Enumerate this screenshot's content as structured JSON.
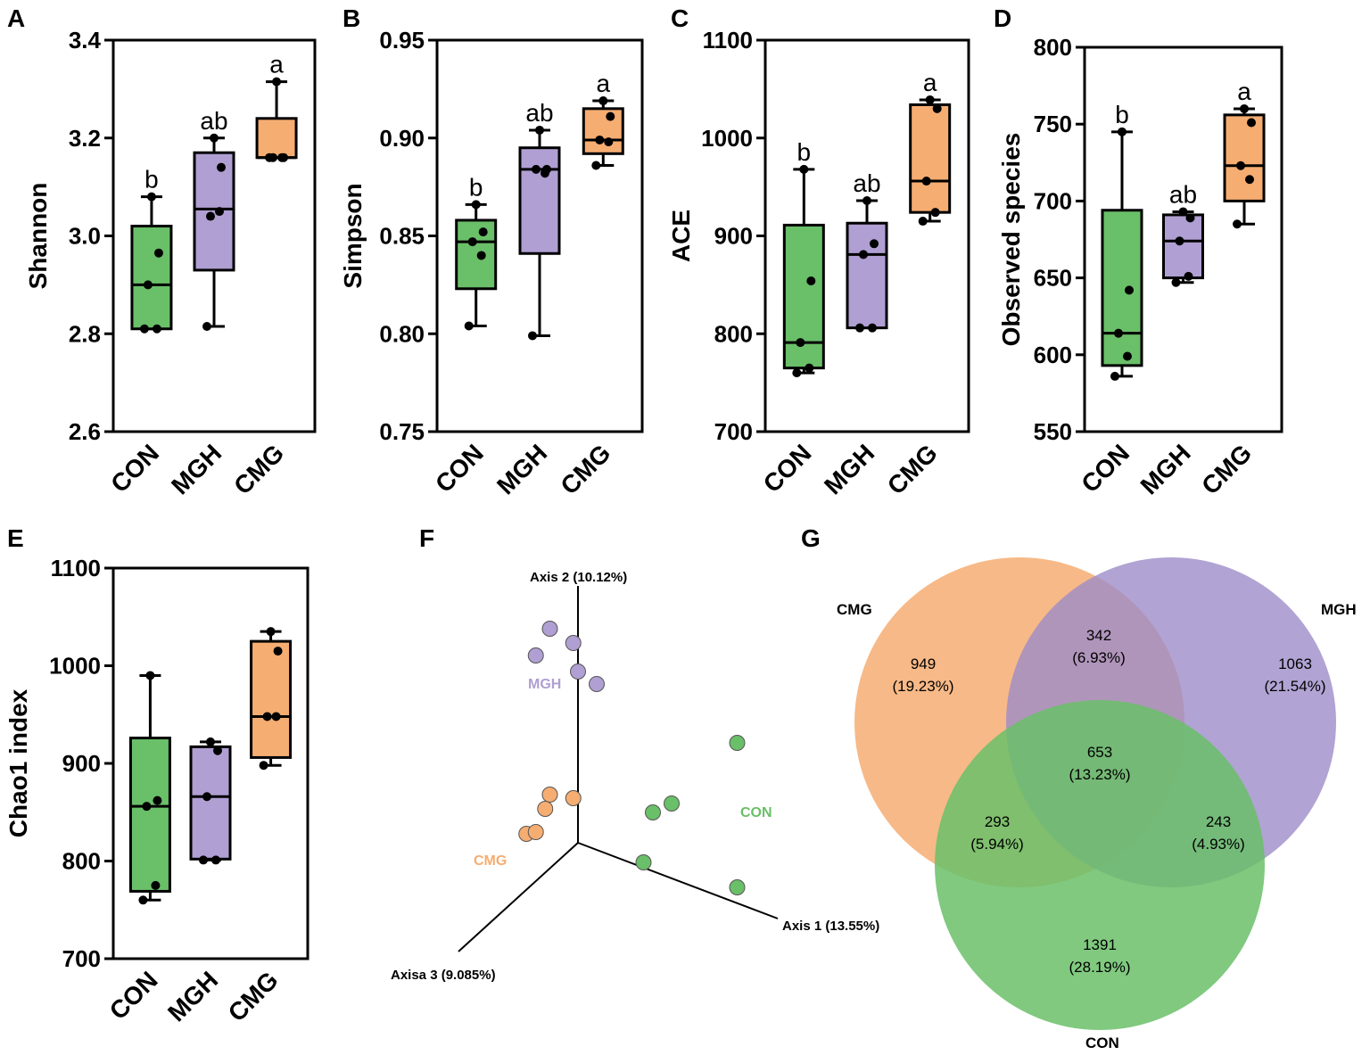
{
  "groups": [
    "CON",
    "MGH",
    "CMG"
  ],
  "colors": {
    "CON": "#6abf69",
    "MGH": "#b09fd2",
    "CMG": "#f6ad72"
  },
  "boxplots": [
    {
      "letter": "A",
      "ylabel": "Shannon",
      "ylim": [
        2.6,
        3.4
      ],
      "ticks": [
        2.6,
        2.8,
        3.0,
        3.2,
        3.4
      ],
      "tick_labels": [
        "2.6",
        "2.8",
        "3.0",
        "3.2",
        "3.4"
      ],
      "boxes": [
        {
          "group": "CON",
          "min": 2.81,
          "q1": 2.81,
          "median": 2.9,
          "q3": 3.02,
          "max": 3.08,
          "points": [
            2.81,
            2.81,
            2.9,
            2.965,
            3.08
          ],
          "sig": "b"
        },
        {
          "group": "MGH",
          "min": 2.815,
          "q1": 2.93,
          "median": 3.055,
          "q3": 3.17,
          "max": 3.2,
          "points": [
            2.815,
            3.05,
            3.04,
            3.14,
            3.2
          ],
          "sig": "ab"
        },
        {
          "group": "CMG",
          "min": 3.16,
          "q1": 3.16,
          "median": 3.16,
          "q3": 3.24,
          "max": 3.315,
          "points": [
            3.16,
            3.16,
            3.16,
            3.16,
            3.315
          ],
          "sig": "a"
        }
      ]
    },
    {
      "letter": "B",
      "ylabel": "Simpson",
      "ylim": [
        0.75,
        0.95
      ],
      "ticks": [
        0.75,
        0.8,
        0.85,
        0.9,
        0.95
      ],
      "tick_labels": [
        "0.75",
        "0.80",
        "0.85",
        "0.90",
        "0.95"
      ],
      "boxes": [
        {
          "group": "CON",
          "min": 0.804,
          "q1": 0.823,
          "median": 0.847,
          "q3": 0.858,
          "max": 0.866,
          "points": [
            0.804,
            0.84,
            0.847,
            0.852,
            0.866
          ],
          "sig": "b"
        },
        {
          "group": "MGH",
          "min": 0.799,
          "q1": 0.841,
          "median": 0.884,
          "q3": 0.895,
          "max": 0.904,
          "points": [
            0.799,
            0.882,
            0.884,
            0.884,
            0.904
          ],
          "sig": "ab"
        },
        {
          "group": "CMG",
          "min": 0.886,
          "q1": 0.892,
          "median": 0.899,
          "q3": 0.915,
          "max": 0.919,
          "points": [
            0.886,
            0.898,
            0.899,
            0.911,
            0.919
          ],
          "sig": "a"
        }
      ]
    },
    {
      "letter": "C",
      "ylabel": "ACE",
      "ylim": [
        700,
        1100
      ],
      "ticks": [
        700,
        800,
        900,
        1000,
        1100
      ],
      "tick_labels": [
        "700",
        "800",
        "900",
        "1000",
        "1100"
      ],
      "boxes": [
        {
          "group": "CON",
          "min": 760,
          "q1": 765,
          "median": 791,
          "q3": 911,
          "max": 968,
          "points": [
            760,
            765,
            791,
            854,
            968
          ],
          "sig": "b"
        },
        {
          "group": "MGH",
          "min": 806,
          "q1": 806,
          "median": 881,
          "q3": 913,
          "max": 936,
          "points": [
            806,
            806,
            881,
            892,
            936
          ],
          "sig": "ab"
        },
        {
          "group": "CMG",
          "min": 915,
          "q1": 924,
          "median": 956,
          "q3": 1034,
          "max": 1039,
          "points": [
            915,
            924,
            956,
            1030,
            1039
          ],
          "sig": "a"
        }
      ]
    },
    {
      "letter": "D",
      "ylabel": "Observed species",
      "ylim": [
        550,
        800
      ],
      "ticks": [
        550,
        600,
        650,
        700,
        750,
        800
      ],
      "tick_labels": [
        "550",
        "600",
        "650",
        "700",
        "750",
        "800"
      ],
      "boxes": [
        {
          "group": "CON",
          "min": 586,
          "q1": 593,
          "median": 614,
          "q3": 694,
          "max": 745,
          "points": [
            586,
            599,
            614,
            642,
            745
          ],
          "sig": "b"
        },
        {
          "group": "MGH",
          "min": 647,
          "q1": 650,
          "median": 674,
          "q3": 691,
          "max": 693,
          "points": [
            647,
            651,
            674,
            689,
            693
          ],
          "sig": "ab"
        },
        {
          "group": "CMG",
          "min": 685,
          "q1": 700,
          "median": 723,
          "q3": 756,
          "max": 760,
          "points": [
            685,
            714,
            723,
            751,
            760
          ],
          "sig": "a"
        }
      ]
    },
    {
      "letter": "E",
      "ylabel": "Chao1 index",
      "ylim": [
        700,
        1100
      ],
      "ticks": [
        700,
        800,
        900,
        1000,
        1100
      ],
      "tick_labels": [
        "700",
        "800",
        "900",
        "1000",
        "1100"
      ],
      "boxes": [
        {
          "group": "CON",
          "min": 760,
          "q1": 769,
          "median": 856,
          "q3": 926,
          "max": 990,
          "points": [
            760,
            775,
            856,
            862,
            990
          ],
          "sig": ""
        },
        {
          "group": "MGH",
          "min": 801,
          "q1": 802,
          "median": 866,
          "q3": 917,
          "max": 922,
          "points": [
            801,
            801,
            866,
            913,
            922
          ],
          "sig": ""
        },
        {
          "group": "CMG",
          "min": 898,
          "q1": 906,
          "median": 948,
          "q3": 1025,
          "max": 1035,
          "points": [
            898,
            948,
            948,
            1015,
            1035
          ],
          "sig": ""
        }
      ]
    }
  ],
  "pcoa": {
    "letter": "F",
    "axis1_label": "Axis 1 (13.55%)",
    "axis2_label": "Axis 2 (10.12%)",
    "axis3_label": "Axisa 3 (9.085%)",
    "groups": [
      {
        "name": "MGH",
        "label": "MGH",
        "points": [
          [
            -0.3,
            1.9
          ],
          [
            -0.05,
            1.85
          ],
          [
            -0.45,
            1.6
          ],
          [
            0.2,
            1.55
          ],
          [
            0.0,
            1.6
          ]
        ]
      },
      {
        "name": "CON",
        "label": "CON",
        "points": [
          [
            1.7,
            1.5
          ],
          [
            1.0,
            0.7
          ],
          [
            0.8,
            0.55
          ],
          [
            0.7,
            0.05
          ],
          [
            1.7,
            0.15
          ]
        ]
      },
      {
        "name": "CMG",
        "label": "CMG",
        "points": [
          [
            -0.3,
            0.35
          ],
          [
            -0.35,
            0.2
          ],
          [
            -0.55,
            -0.1
          ],
          [
            -0.45,
            -0.05
          ],
          [
            -0.05,
            0.4
          ]
        ]
      }
    ]
  },
  "venn": {
    "letter": "G",
    "sets": [
      "CMG",
      "MGH",
      "CON"
    ],
    "regions": [
      {
        "id": "cmg-only",
        "count": "949",
        "pct": "(19.23%)"
      },
      {
        "id": "mgh-only",
        "count": "1063",
        "pct": "(21.54%)"
      },
      {
        "id": "con-only",
        "count": "1391",
        "pct": "(28.19%)"
      },
      {
        "id": "cmg-mgh",
        "count": "342",
        "pct": "(6.93%)"
      },
      {
        "id": "cmg-con",
        "count": "293",
        "pct": "(5.94%)"
      },
      {
        "id": "mgh-con",
        "count": "243",
        "pct": "(4.93%)"
      },
      {
        "id": "all",
        "count": "653",
        "pct": "(13.23%)"
      }
    ]
  },
  "chart_data": [
    {
      "type": "box",
      "title": "A",
      "ylabel": "Shannon",
      "categories": [
        "CON",
        "MGH",
        "CMG"
      ],
      "ylim": [
        2.6,
        3.4
      ],
      "medians": [
        2.9,
        3.055,
        3.16
      ],
      "significance": [
        "b",
        "ab",
        "a"
      ]
    },
    {
      "type": "box",
      "title": "B",
      "ylabel": "Simpson",
      "categories": [
        "CON",
        "MGH",
        "CMG"
      ],
      "ylim": [
        0.75,
        0.95
      ],
      "medians": [
        0.847,
        0.884,
        0.899
      ],
      "significance": [
        "b",
        "ab",
        "a"
      ]
    },
    {
      "type": "box",
      "title": "C",
      "ylabel": "ACE",
      "categories": [
        "CON",
        "MGH",
        "CMG"
      ],
      "ylim": [
        700,
        1100
      ],
      "medians": [
        791,
        881,
        956
      ],
      "significance": [
        "b",
        "ab",
        "a"
      ]
    },
    {
      "type": "box",
      "title": "D",
      "ylabel": "Observed species",
      "categories": [
        "CON",
        "MGH",
        "CMG"
      ],
      "ylim": [
        550,
        800
      ],
      "medians": [
        614,
        674,
        723
      ],
      "significance": [
        "b",
        "ab",
        "a"
      ]
    },
    {
      "type": "box",
      "title": "E",
      "ylabel": "Chao1 index",
      "categories": [
        "CON",
        "MGH",
        "CMG"
      ],
      "ylim": [
        700,
        1100
      ],
      "medians": [
        856,
        866,
        948
      ]
    },
    {
      "type": "scatter",
      "title": "F",
      "xlabel": "Axis 1 (13.55%)",
      "ylabel": "Axis 2 (10.12%)",
      "zlabel": "Axisa 3 (9.085%)",
      "series": [
        "MGH",
        "CON",
        "CMG"
      ]
    },
    {
      "type": "venn",
      "title": "G",
      "sets": [
        "CMG",
        "MGH",
        "CON"
      ],
      "values": {
        "CMG": 949,
        "MGH": 1063,
        "CON": 1391,
        "CMG&MGH": 342,
        "CMG&CON": 293,
        "MGH&CON": 243,
        "ALL": 653
      }
    }
  ]
}
